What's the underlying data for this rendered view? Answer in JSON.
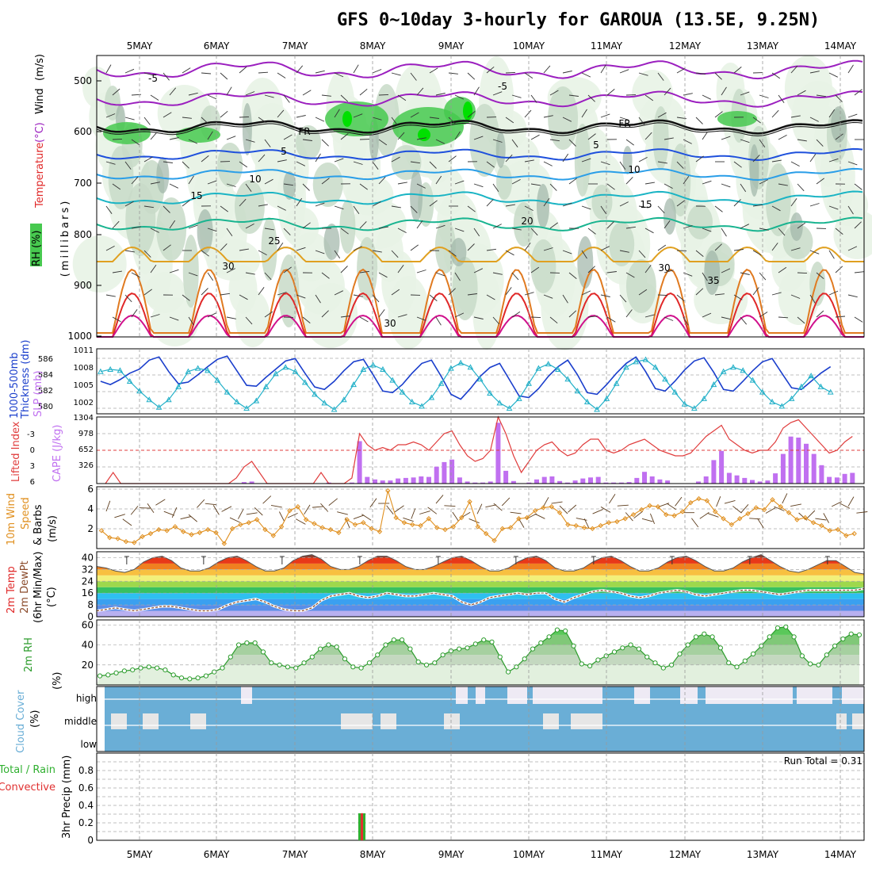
{
  "title": "GFS 0~10day 3-hourly for GAROUA (13.5E, 9.25N)",
  "date_labels": [
    "5MAY",
    "6MAY",
    "7MAY",
    "8MAY",
    "9MAY",
    "10MAY",
    "11MAY",
    "12MAY",
    "13MAY",
    "14MAY"
  ],
  "colors": {
    "rh_light": "#e8f3e6",
    "rh_mid": "#c8dac8",
    "rh_dark": "#9fb5a8",
    "rh_green": "#47c94f",
    "rh_bright": "#00e000",
    "temp_neg": "#9b1fbf",
    "temp_zero": "#111111",
    "temp_5": "#1e50dc",
    "temp_10": "#2a9ee8",
    "temp_15": "#1ab4c4",
    "temp_20": "#19b490",
    "temp_25": "#e0a020",
    "temp_30": "#e07a20",
    "temp_35": "#e02828",
    "temp_40": "#d0108c",
    "thickness": "#1a3ecc",
    "slp": "#22b0c8",
    "lifted": "#e03c3c",
    "cape": "#c070f0",
    "wind10m": "#e09020",
    "barb": "#5c3c1c",
    "rh2m": "#2c9c2c",
    "cloud": "#6aaed6",
    "precip_total": "#30b030",
    "precip_conv": "#e03030"
  },
  "panels": {
    "upper": {
      "ylabels": [
        "Temperature",
        "(°C)",
        "Wind",
        "(m/s)",
        "RH",
        "(%)",
        "(millibars)"
      ],
      "yticks": [
        "500",
        "600",
        "700",
        "800",
        "900",
        "1000"
      ],
      "contour_labels": [
        "-5",
        "-5",
        "FR",
        "FR",
        "5",
        "5",
        "10",
        "10",
        "15",
        "15",
        "20",
        "25",
        "30",
        "30",
        "35",
        "30"
      ]
    },
    "thickness": {
      "ylabels": [
        "1000-500mb",
        "Thickness (dm)",
        "SLP (mb)"
      ],
      "left_ticks": [
        "586",
        "584",
        "582",
        "580"
      ],
      "right_ticks": [
        "1011",
        "1008",
        "1005",
        "1002"
      ]
    },
    "cape": {
      "ylabels": [
        "Lifted Index",
        "CAPE (J/kg)"
      ],
      "left_ticks": [
        "-3",
        "0",
        "3",
        "6"
      ],
      "right_ticks": [
        "1304",
        "978",
        "652",
        "326"
      ]
    },
    "wind": {
      "ylabels": [
        "10m Wind",
        "Speed",
        "& Barbs",
        "(m/s)"
      ],
      "ticks": [
        "6",
        "4",
        "2"
      ]
    },
    "temp2m": {
      "ylabels": [
        "2m Temp",
        "2m DewPt",
        "(6hr Min/Max)",
        "(°C)"
      ],
      "ticks": [
        "40",
        "32",
        "24",
        "16",
        "8",
        "0"
      ]
    },
    "rh2m": {
      "ylabels": [
        "2m RH",
        "(%)"
      ],
      "ticks": [
        "60",
        "40",
        "20"
      ]
    },
    "cloud": {
      "ylabels": [
        "Cloud Cover",
        "(%)"
      ],
      "levels": [
        "high",
        "middle",
        "low"
      ]
    },
    "precip": {
      "ylabels": [
        "Total / Rain",
        "Convective",
        "3hr Precip (mm)"
      ],
      "ticks": [
        "0.8",
        "0.6",
        "0.4",
        "0.2",
        "0"
      ],
      "top_ticks": [
        "0.8"
      ],
      "run_total": "Run Total = 0.31"
    }
  },
  "chart_data": [
    {
      "type": "line",
      "name": "thickness_slp",
      "x_unit": "3-hour steps from 4 May 12Z",
      "series": [
        {
          "name": "1000-500mb Thickness (dm)",
          "axis": "left",
          "ylim": [
            579,
            587
          ],
          "values": [
            583.0,
            582.6,
            583.2,
            584.0,
            584.5,
            585.6,
            586.0,
            584.2,
            582.7,
            582.9,
            583.8,
            584.8,
            585.7,
            586.1,
            584.3,
            582.5,
            582.4,
            583.5,
            584.5,
            585.5,
            585.8,
            584.0,
            582.3,
            582.0,
            583.0,
            584.3,
            585.4,
            585.7,
            583.8,
            581.8,
            581.6,
            582.6,
            584.0,
            585.2,
            585.6,
            583.6,
            581.4,
            580.8,
            582.1,
            583.6,
            584.7,
            585.2,
            583.2,
            581.2,
            581.0,
            582.1,
            583.6,
            584.8,
            585.6,
            583.8,
            581.6,
            581.4,
            582.6,
            584.0,
            585.2,
            586.0,
            584.2,
            582.1,
            581.8,
            583.0,
            584.4,
            585.5,
            585.9,
            584.1,
            582.0,
            581.8,
            583.0,
            584.3,
            585.4,
            585.8,
            584.0,
            582.2,
            582.0,
            583.0,
            584.0,
            584.8
          ]
        },
        {
          "name": "SLP (mb)",
          "axis": "right",
          "ylim": [
            1000,
            1012
          ],
          "values": [
            1007.8,
            1008.2,
            1008.0,
            1006.0,
            1004.2,
            1002.6,
            1001.2,
            1002.6,
            1005.0,
            1007.8,
            1008.4,
            1008.0,
            1006.2,
            1004.0,
            1002.2,
            1001.0,
            1002.4,
            1005.0,
            1007.4,
            1008.6,
            1007.8,
            1005.8,
            1003.6,
            1002.0,
            1000.8,
            1002.6,
            1005.4,
            1008.2,
            1009.0,
            1008.2,
            1006.2,
            1004.0,
            1002.2,
            1001.4,
            1003.0,
            1005.6,
            1008.4,
            1009.4,
            1008.6,
            1006.4,
            1003.8,
            1002.0,
            1001.0,
            1002.8,
            1005.6,
            1008.4,
            1009.2,
            1008.2,
            1006.4,
            1004.2,
            1002.2,
            1000.8,
            1002.8,
            1005.6,
            1008.6,
            1009.6,
            1010.0,
            1008.6,
            1006.4,
            1004.0,
            1001.8,
            1001.0,
            1002.8,
            1005.4,
            1007.8,
            1008.6,
            1008.0,
            1006.2,
            1004.0,
            1002.2,
            1001.4,
            1002.8,
            1005.0,
            1007.0,
            1005.0,
            1004.0
          ]
        }
      ]
    },
    {
      "type": "bar",
      "name": "cape_lifted_index",
      "series": [
        {
          "name": "CAPE (J/kg)",
          "axis": "right",
          "ylim": [
            0,
            1304
          ],
          "values": [
            0,
            0,
            0,
            0,
            0,
            0,
            0,
            0,
            0,
            0,
            0,
            0,
            0,
            0,
            0,
            0,
            0,
            10,
            30,
            40,
            0,
            0,
            0,
            0,
            0,
            0,
            0,
            0,
            0,
            20,
            0,
            0,
            20,
            830,
            130,
            80,
            60,
            60,
            100,
            110,
            120,
            140,
            130,
            330,
            420,
            470,
            120,
            40,
            20,
            20,
            40,
            1190,
            250,
            50,
            0,
            20,
            80,
            130,
            140,
            50,
            20,
            60,
            100,
            120,
            130,
            20,
            20,
            20,
            30,
            110,
            230,
            140,
            80,
            60,
            0,
            0,
            0,
            40,
            140,
            460,
            640,
            210,
            160,
            110,
            70,
            40,
            60,
            200,
            580,
            920,
            900,
            780,
            580,
            360,
            130,
            120,
            190,
            210
          ]
        },
        {
          "name": "Lifted Index",
          "axis": "left",
          "ylim": [
            6,
            -6
          ],
          "values": [
            6,
            4,
            6,
            6,
            6,
            6,
            6,
            6,
            6,
            6,
            6,
            6,
            6,
            6,
            6,
            6,
            6,
            5,
            3,
            2,
            4,
            6,
            6,
            6,
            6,
            6,
            6,
            6,
            4,
            6,
            6,
            6,
            5,
            -3,
            -1,
            0,
            -0.5,
            0,
            -1,
            -1,
            -1.5,
            -1,
            0,
            -1.5,
            -3,
            -3.5,
            -1,
            1,
            2,
            1.5,
            0,
            -6,
            -3,
            1,
            4,
            2,
            0,
            -1,
            -1.5,
            0,
            1,
            0.5,
            -1,
            -2,
            -2,
            0,
            0.5,
            0,
            -1,
            -1.5,
            -2,
            -1,
            0,
            0.5,
            1,
            1,
            0.5,
            -1,
            -2.5,
            -3.5,
            -4.5,
            -2,
            -1,
            0,
            0.5,
            0,
            0,
            -1.5,
            -4,
            -5,
            -5.5,
            -4,
            -2.5,
            -1,
            0.5,
            0,
            -1.5,
            -2.5
          ]
        }
      ]
    },
    {
      "type": "line",
      "name": "wind_10m",
      "series": [
        {
          "name": "10m Wind Speed (m/s)",
          "ylim": [
            0,
            6
          ],
          "values": [
            1.8,
            1.1,
            1.0,
            0.7,
            0.6,
            1.2,
            1.5,
            1.9,
            1.8,
            2.2,
            1.7,
            1.4,
            1.6,
            1.9,
            1.6,
            0.5,
            2.0,
            2.4,
            2.6,
            2.9,
            1.9,
            1.3,
            2.2,
            3.8,
            4.2,
            2.9,
            2.5,
            2.1,
            1.9,
            1.6,
            2.9,
            2.4,
            2.6,
            2.0,
            1.7,
            5.8,
            3.1,
            2.6,
            2.4,
            2.3,
            3.0,
            2.1,
            1.9,
            2.2,
            3.1,
            4.7,
            2.2,
            1.5,
            0.8,
            2.0,
            2.1,
            3.0,
            3.1,
            3.8,
            4.1,
            4.2,
            3.6,
            2.4,
            2.3,
            2.1,
            2.0,
            2.3,
            2.6,
            2.7,
            3.0,
            3.4,
            3.9,
            4.3,
            4.2,
            3.4,
            3.3,
            3.7,
            4.6,
            5.0,
            4.8,
            3.7,
            3.0,
            2.4,
            3.0,
            3.5,
            4.1,
            3.9,
            4.9,
            4.2,
            3.6,
            2.9,
            3.1,
            2.6,
            2.3,
            1.8,
            1.9,
            1.3,
            1.5
          ]
        }
      ]
    },
    {
      "type": "area",
      "name": "temp_2m",
      "series": [
        {
          "name": "2m Temp (°C)",
          "ylim": [
            0,
            44
          ],
          "values": [
            34,
            33,
            31,
            30,
            32,
            37,
            40,
            41,
            38,
            33,
            31,
            31,
            33,
            37,
            40,
            41,
            38,
            34,
            31,
            31,
            33,
            38,
            41,
            42,
            39,
            34,
            32,
            32,
            34,
            38,
            41,
            41,
            38,
            34,
            32,
            32,
            34,
            37,
            40,
            41,
            38,
            34,
            31,
            31,
            33,
            37,
            40,
            41,
            38,
            33,
            31,
            31,
            33,
            37,
            40,
            41,
            38,
            34,
            31,
            31,
            33,
            37,
            40,
            41,
            38,
            34,
            31,
            31,
            33,
            37,
            40,
            42,
            38,
            34,
            31,
            30,
            32,
            35,
            38,
            38,
            34,
            30,
            29
          ]
        },
        {
          "name": "2m DewPt (°C)",
          "ylim": [
            0,
            44
          ],
          "values": [
            4,
            5,
            6,
            5,
            4,
            5,
            6,
            7,
            7,
            6,
            5,
            4,
            4,
            5,
            8,
            10,
            11,
            12,
            10,
            7,
            5,
            4,
            4,
            6,
            11,
            14,
            15,
            16,
            14,
            13,
            14,
            16,
            15,
            14,
            14,
            15,
            16,
            15,
            14,
            10,
            8,
            10,
            13,
            14,
            15,
            16,
            15,
            16,
            16,
            12,
            10,
            13,
            15,
            17,
            18,
            17,
            16,
            14,
            13,
            14,
            16,
            17,
            18,
            17,
            15,
            14,
            15,
            16,
            17,
            18,
            18,
            17,
            16,
            15,
            16,
            17,
            18,
            18,
            18,
            18,
            18,
            18,
            19
          ]
        }
      ]
    },
    {
      "type": "area",
      "name": "rh_2m",
      "series": [
        {
          "name": "2m RH (%)",
          "ylim": [
            0,
            65
          ],
          "values": [
            9,
            10,
            12,
            14,
            15,
            17,
            18,
            17,
            15,
            10,
            7,
            6,
            7,
            9,
            13,
            17,
            28,
            40,
            42,
            42,
            33,
            22,
            20,
            18,
            17,
            22,
            28,
            36,
            40,
            38,
            26,
            18,
            17,
            22,
            30,
            40,
            45,
            45,
            36,
            23,
            20,
            22,
            30,
            34,
            36,
            37,
            41,
            45,
            43,
            28,
            13,
            18,
            26,
            36,
            42,
            48,
            55,
            54,
            39,
            21,
            19,
            25,
            29,
            33,
            37,
            40,
            36,
            28,
            22,
            17,
            20,
            31,
            40,
            48,
            51,
            48,
            37,
            22,
            18,
            24,
            31,
            39,
            48,
            57,
            58,
            48,
            29,
            21,
            20,
            30,
            39,
            46,
            51,
            50
          ]
        }
      ]
    },
    {
      "type": "bar",
      "name": "precip_3hr",
      "ylim": [
        0,
        1.0
      ],
      "series": [
        {
          "name": "Total / Rain (mm)",
          "at": "8MAY",
          "values": [
            0.31
          ]
        },
        {
          "name": "Convective (mm)",
          "at": "8MAY",
          "values": [
            0.31
          ]
        }
      ]
    }
  ]
}
